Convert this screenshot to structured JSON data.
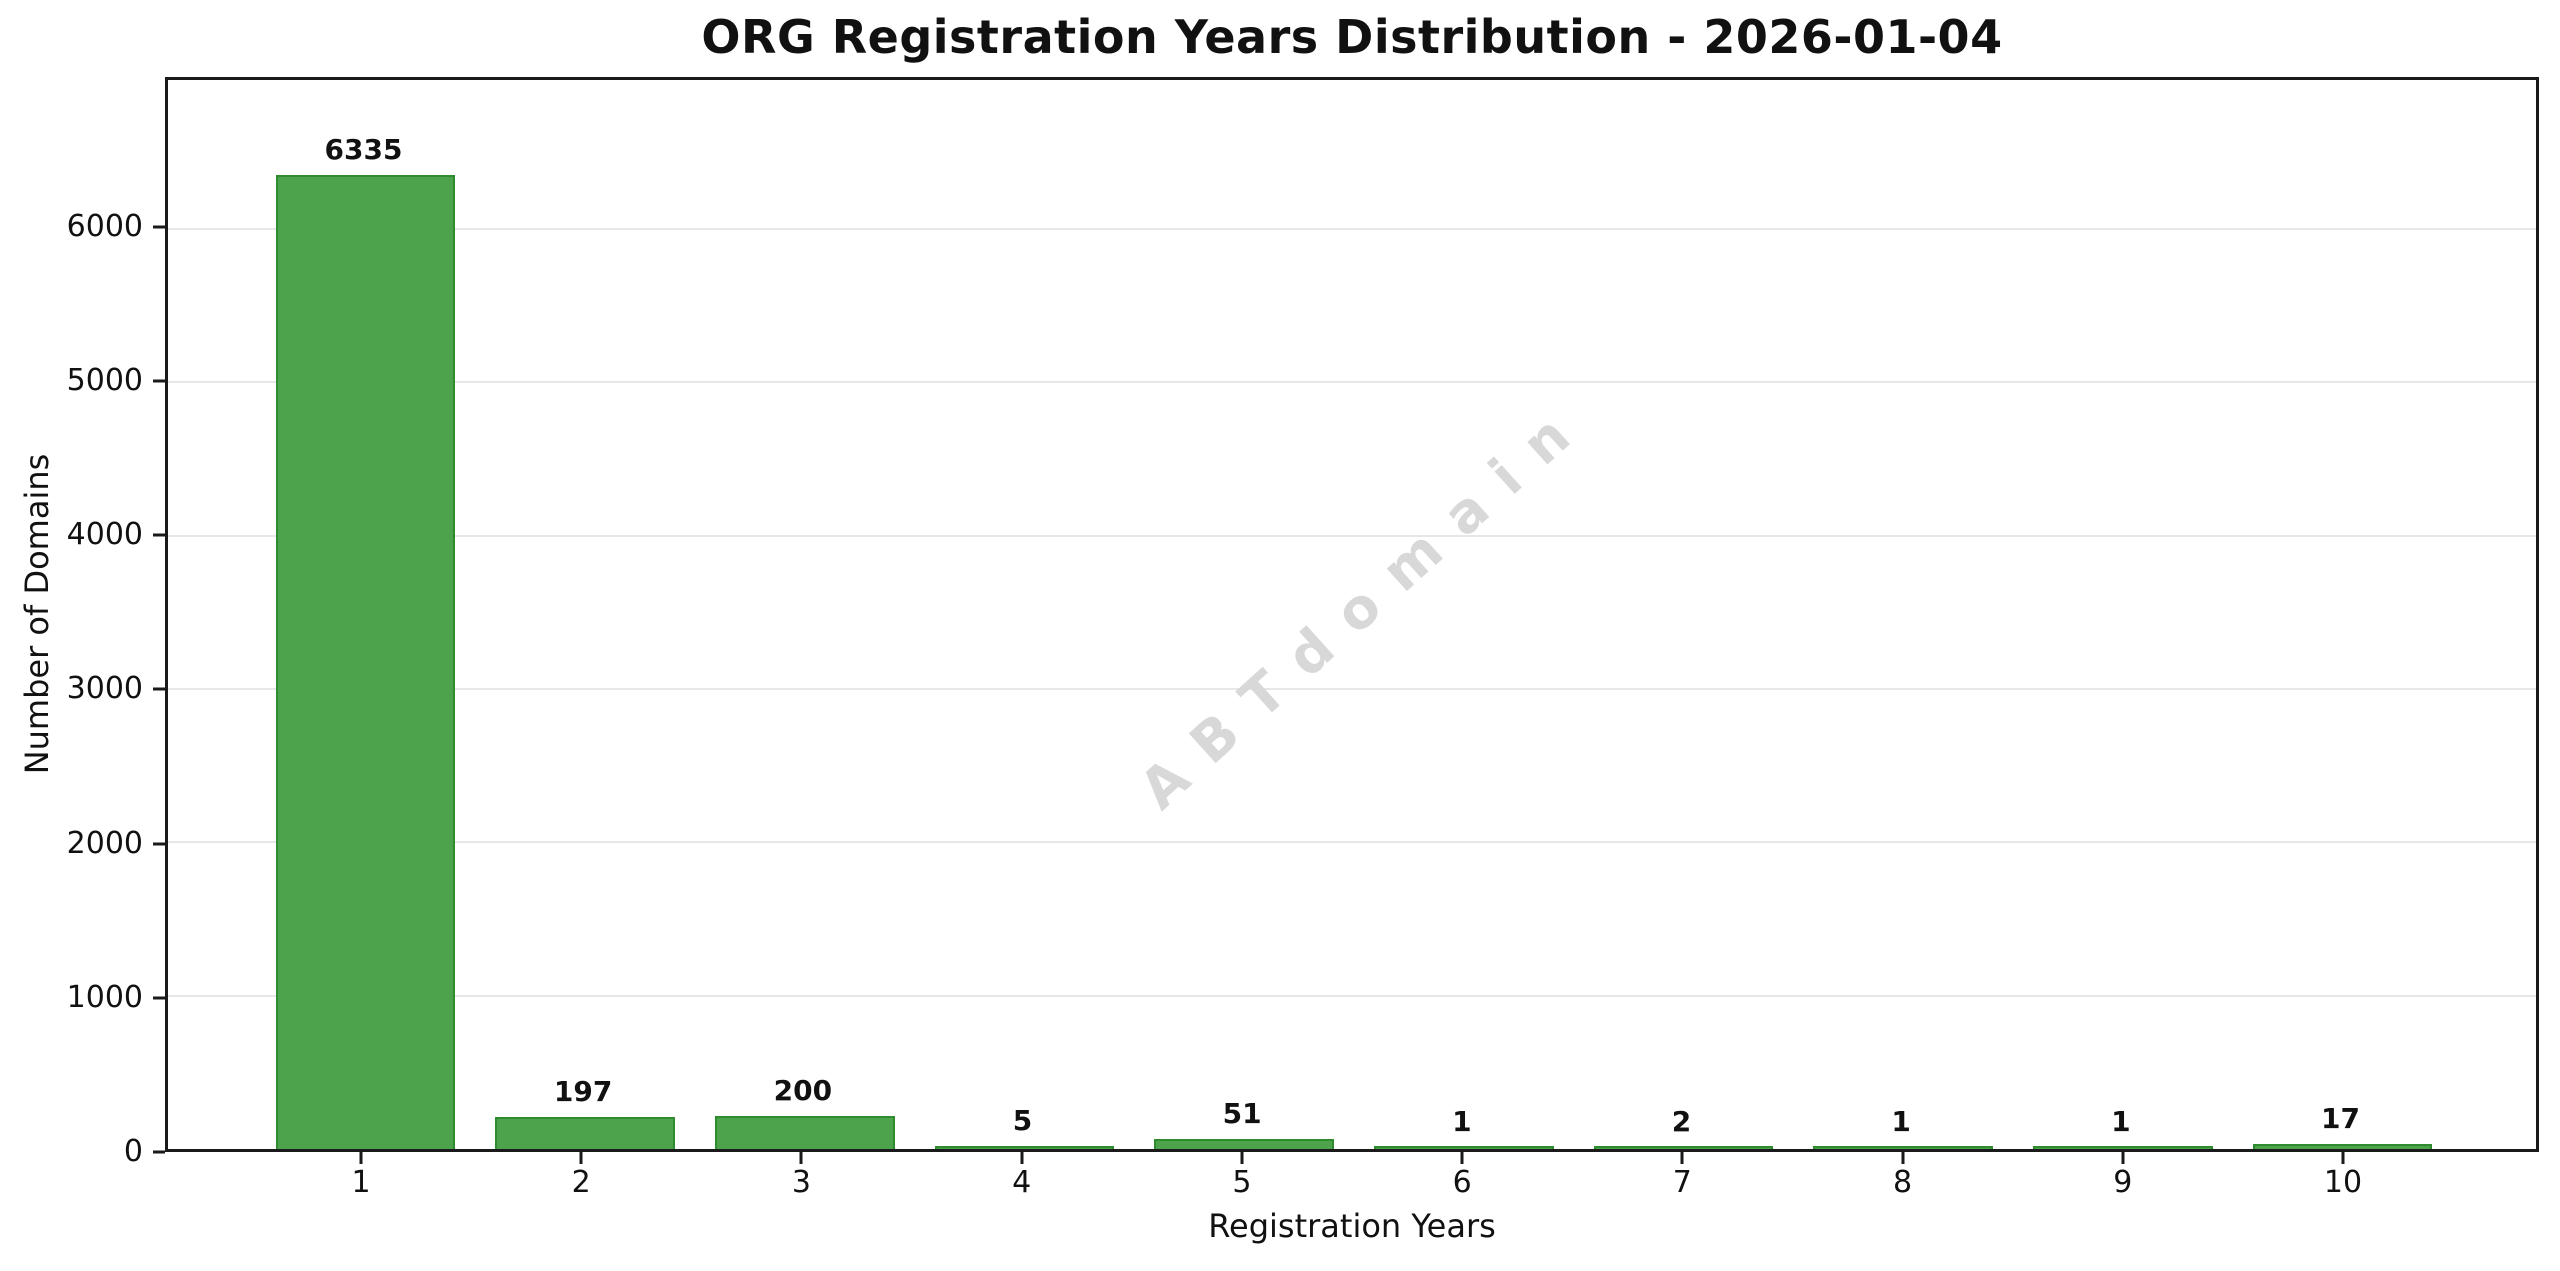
{
  "title": "ORG Registration Years Distribution - 2026-01-04",
  "watermark": "ABTdomain",
  "chart_data": {
    "type": "bar",
    "title": "ORG Registration Years Distribution - 2026-01-04",
    "categories": [
      "1",
      "2",
      "3",
      "4",
      "5",
      "6",
      "7",
      "8",
      "9",
      "10"
    ],
    "values": [
      6335,
      197,
      200,
      5,
      51,
      1,
      2,
      1,
      1,
      17
    ],
    "xlabel": "Registration Years",
    "ylabel": "Number of Domains",
    "yticks": [
      0,
      1000,
      2000,
      3000,
      4000,
      5000,
      6000
    ],
    "ylim": [
      0,
      6970
    ],
    "xlim": [
      0.11,
      10.89
    ],
    "bar_width": 0.8,
    "grid": "horizontal",
    "legend": "none",
    "bar_color": "#4CA34C",
    "bar_edge_color": "#2E8B2E",
    "grid_color": "#e7e7e7",
    "watermark_color": "#d8d8d8"
  }
}
